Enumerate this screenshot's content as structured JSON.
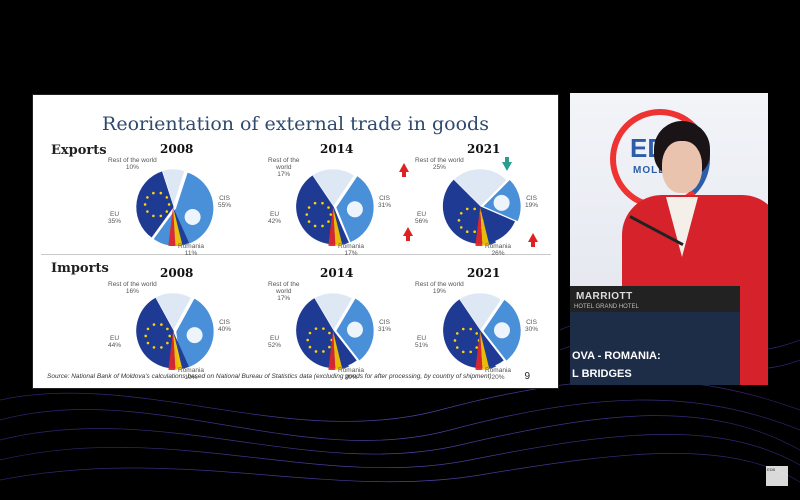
{
  "slide": {
    "title": "Reorientation of external trade in goods",
    "rows": {
      "exports": "Exports",
      "imports": "Imports"
    },
    "source": "Source:  National Bank of Moldova's calculations based on National Bureau of Statistics data (excluding goods for after processing, by country of shipment)",
    "page_number": "9"
  },
  "colors": {
    "cis": "#4a90d9",
    "eu": "#1f3a93",
    "romania_red": "#e0262b",
    "romania_yellow": "#f3c200",
    "rest": "#dde8f4",
    "slide_title": "#2f4a6d"
  },
  "chart_data": [
    {
      "type": "pie",
      "group": "Exports",
      "year": "2008",
      "slices": [
        {
          "label": "CIS",
          "value": 55,
          "text": "CIS\n55%"
        },
        {
          "label": "EU",
          "value": 35,
          "text": "EU\n35%"
        },
        {
          "label": "Rest of the world",
          "value": 10,
          "text": "Rest of the world\n10%"
        }
      ],
      "romania_text": "Romania\n11%"
    },
    {
      "type": "pie",
      "group": "Exports",
      "year": "2014",
      "slices": [
        {
          "label": "CIS",
          "value": 31,
          "text": "CIS\n31%"
        },
        {
          "label": "EU",
          "value": 42,
          "text": "EU\n42%"
        },
        {
          "label": "Rest of the world",
          "value": 17,
          "text": "Rest of the\nworld\n17%"
        }
      ],
      "romania_text": "Romania\n17%"
    },
    {
      "type": "pie",
      "group": "Exports",
      "year": "2021",
      "slices": [
        {
          "label": "CIS",
          "value": 19,
          "text": "CIS\n19%"
        },
        {
          "label": "EU",
          "value": 56,
          "text": "EU\n56%"
        },
        {
          "label": "Rest of the world",
          "value": 25,
          "text": "Rest of the world\n25%"
        }
      ],
      "romania_text": "Romania\n26%"
    },
    {
      "type": "pie",
      "group": "Imports",
      "year": "2008",
      "slices": [
        {
          "label": "CIS",
          "value": 40,
          "text": "CIS\n40%"
        },
        {
          "label": "EU",
          "value": 44,
          "text": "EU\n44%"
        },
        {
          "label": "Rest of the world",
          "value": 16,
          "text": "Rest of the world\n16%"
        }
      ],
      "romania_text": "Romania\n10%"
    },
    {
      "type": "pie",
      "group": "Imports",
      "year": "2014",
      "slices": [
        {
          "label": "CIS",
          "value": 31,
          "text": "CIS\n31%"
        },
        {
          "label": "EU",
          "value": 52,
          "text": "EU\n52%"
        },
        {
          "label": "Rest of the world",
          "value": 17,
          "text": "Rest of the\nworld\n17%"
        }
      ],
      "romania_text": "Romania\n20%"
    },
    {
      "type": "pie",
      "group": "Imports",
      "year": "2021",
      "slices": [
        {
          "label": "CIS",
          "value": 30,
          "text": "CIS\n30%"
        },
        {
          "label": "EU",
          "value": 51,
          "text": "EU\n51%"
        },
        {
          "label": "Rest of the world",
          "value": 19,
          "text": "Rest of the world\n19%"
        }
      ],
      "romania_text": "Romania\n20%"
    }
  ],
  "video": {
    "logo_text": "EDB",
    "logo_sub": "MOLD",
    "podium_brand": "MARRIOTT",
    "podium_sub": "HOTEL GRAND HOTEL",
    "banner_line1": "OVA - ROMANIA:",
    "banner_line2": "L BRIDGES"
  },
  "corner_logo": "EDB"
}
